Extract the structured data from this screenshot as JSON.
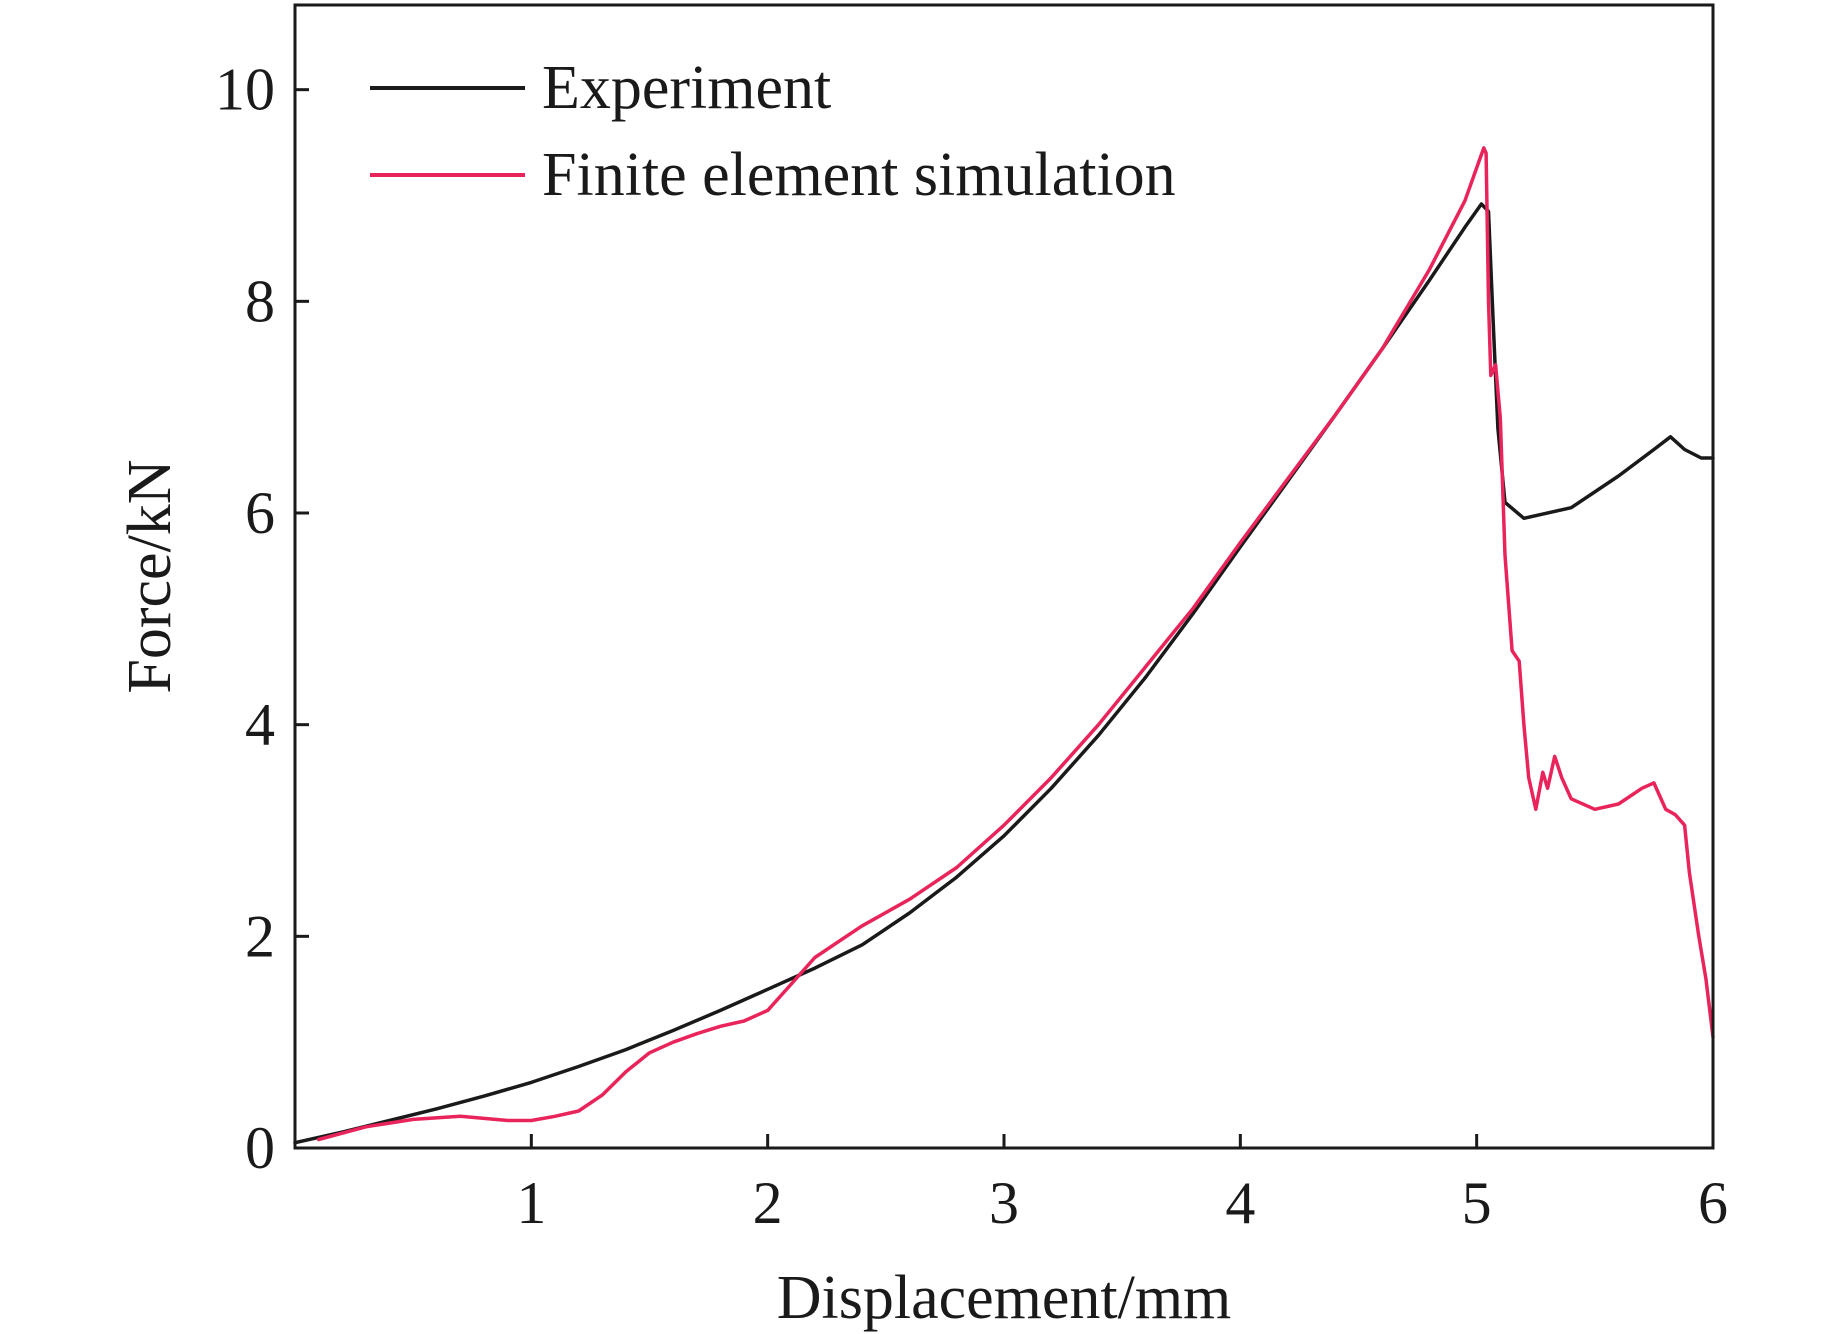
{
  "chart_data": {
    "type": "line",
    "title": "",
    "xlabel": "Displacement/mm",
    "ylabel": "Force/kN",
    "xlim": [
      0,
      6
    ],
    "ylim": [
      0,
      10.8
    ],
    "xticks": [
      1,
      2,
      3,
      4,
      5,
      6
    ],
    "yticks": [
      0,
      2,
      4,
      6,
      8,
      10
    ],
    "grid": false,
    "legend_position": "top-left",
    "series": [
      {
        "name": "Experiment",
        "color": "#1a1a1a",
        "x": [
          0.0,
          0.2,
          0.4,
          0.6,
          0.8,
          1.0,
          1.2,
          1.4,
          1.6,
          1.8,
          2.0,
          2.2,
          2.4,
          2.6,
          2.8,
          3.0,
          3.2,
          3.4,
          3.6,
          3.8,
          4.0,
          4.2,
          4.4,
          4.6,
          4.8,
          4.95,
          5.02,
          5.05,
          5.07,
          5.09,
          5.12,
          5.2,
          5.4,
          5.6,
          5.75,
          5.82,
          5.88,
          5.95,
          6.0
        ],
        "y": [
          0.05,
          0.15,
          0.26,
          0.37,
          0.49,
          0.62,
          0.77,
          0.93,
          1.11,
          1.3,
          1.5,
          1.7,
          1.92,
          2.22,
          2.56,
          2.95,
          3.4,
          3.9,
          4.45,
          5.05,
          5.68,
          6.3,
          6.92,
          7.55,
          8.2,
          8.7,
          8.92,
          8.85,
          7.8,
          6.8,
          6.1,
          5.95,
          6.05,
          6.35,
          6.6,
          6.72,
          6.6,
          6.52,
          6.52
        ]
      },
      {
        "name": "Finite element simulation",
        "color": "#e8245a",
        "x": [
          0.1,
          0.3,
          0.5,
          0.7,
          0.9,
          1.0,
          1.1,
          1.2,
          1.3,
          1.4,
          1.5,
          1.6,
          1.7,
          1.8,
          1.9,
          2.0,
          2.1,
          2.2,
          2.3,
          2.4,
          2.6,
          2.8,
          3.0,
          3.2,
          3.4,
          3.6,
          3.8,
          4.0,
          4.2,
          4.4,
          4.6,
          4.8,
          4.95,
          5.03,
          5.04,
          5.05,
          5.06,
          5.08,
          5.1,
          5.12,
          5.15,
          5.18,
          5.2,
          5.22,
          5.25,
          5.28,
          5.3,
          5.33,
          5.36,
          5.4,
          5.5,
          5.6,
          5.7,
          5.75,
          5.8,
          5.84,
          5.88,
          5.9,
          5.94,
          5.97,
          6.0
        ],
        "y": [
          0.08,
          0.2,
          0.27,
          0.3,
          0.26,
          0.26,
          0.3,
          0.35,
          0.5,
          0.72,
          0.9,
          1.0,
          1.08,
          1.15,
          1.2,
          1.3,
          1.55,
          1.8,
          1.95,
          2.1,
          2.35,
          2.65,
          3.05,
          3.5,
          4.0,
          4.55,
          5.1,
          5.72,
          6.32,
          6.92,
          7.55,
          8.3,
          8.95,
          9.45,
          9.4,
          8.0,
          7.3,
          7.4,
          6.9,
          5.6,
          4.7,
          4.6,
          4.0,
          3.5,
          3.2,
          3.55,
          3.4,
          3.7,
          3.5,
          3.3,
          3.2,
          3.25,
          3.4,
          3.45,
          3.2,
          3.15,
          3.05,
          2.6,
          2.0,
          1.6,
          1.05
        ]
      }
    ]
  }
}
